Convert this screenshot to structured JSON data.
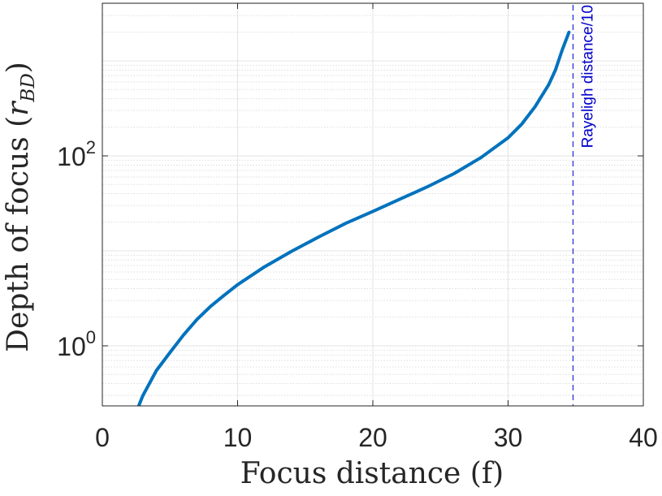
{
  "chart_data": {
    "type": "line",
    "xlabel": "Focus distance (f)",
    "ylabel": {
      "main": "Depth of focus (",
      "symbol": "r",
      "subscript": "BD",
      "close": ")"
    },
    "xlim": [
      0,
      40
    ],
    "ylim": [
      0.1,
      2000
    ],
    "yscale": "log",
    "grid": true,
    "minor_grid": true,
    "x_ticks": [
      {
        "value": 0,
        "label": "0"
      },
      {
        "value": 10,
        "label": "10"
      },
      {
        "value": 20,
        "label": "20"
      },
      {
        "value": 30,
        "label": "30"
      },
      {
        "value": 40,
        "label": "40"
      }
    ],
    "y_ticks": [
      {
        "value": 1,
        "base": "10",
        "exp": "0"
      },
      {
        "value": 100,
        "base": "10",
        "exp": "2"
      }
    ],
    "series": [
      {
        "color": "#0072bd",
        "points": [
          [
            2.0,
            0.1
          ],
          [
            2.5,
            0.2
          ],
          [
            3.0,
            0.3
          ],
          [
            4.0,
            0.55
          ],
          [
            5.0,
            0.85
          ],
          [
            6.0,
            1.3
          ],
          [
            7.0,
            1.9
          ],
          [
            8.0,
            2.6
          ],
          [
            9.0,
            3.4
          ],
          [
            10.0,
            4.4
          ],
          [
            12.0,
            6.8
          ],
          [
            14.0,
            9.9
          ],
          [
            16.0,
            14.0
          ],
          [
            18.0,
            19.5
          ],
          [
            20.0,
            26.0
          ],
          [
            22.0,
            35.0
          ],
          [
            24.0,
            47.0
          ],
          [
            26.0,
            65.0
          ],
          [
            28.0,
            96.0
          ],
          [
            30.0,
            155.0
          ],
          [
            31.0,
            215.0
          ],
          [
            32.0,
            330.0
          ],
          [
            33.0,
            560.0
          ],
          [
            33.5,
            800.0
          ],
          [
            34.0,
            1300.0
          ],
          [
            34.5,
            2000.0
          ]
        ]
      }
    ],
    "annotations": [
      {
        "type": "vertical-line",
        "x": 34.8,
        "style": "dashed",
        "color": "#0000cc",
        "label": "Rayeligh distance/10"
      }
    ]
  }
}
